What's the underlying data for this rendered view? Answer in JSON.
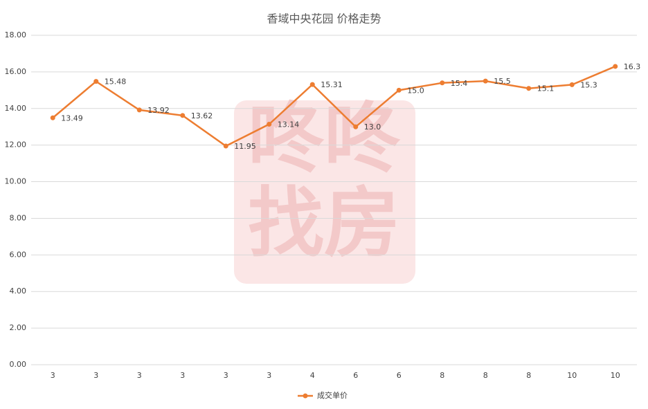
{
  "chart_data": {
    "type": "line",
    "title": "香域中央花园  价格走势",
    "watermark": "咚咚找房",
    "categories": [
      "3",
      "3",
      "3",
      "3",
      "3",
      "3",
      "4",
      "6",
      "6",
      "8",
      "8",
      "8",
      "10",
      "10"
    ],
    "series": [
      {
        "name": "成交单价",
        "color": "#ed7d31",
        "values": [
          13.49,
          15.48,
          13.92,
          13.62,
          11.95,
          13.14,
          15.31,
          13.0,
          15.0,
          15.4,
          15.5,
          15.1,
          15.3,
          16.3
        ],
        "value_labels": [
          "13.49",
          "15.48",
          "13.92",
          "13.62",
          "11.95",
          "13.14",
          "15.31",
          "13.0",
          "15.0",
          "15.4",
          "15.5",
          "15.1",
          "15.3",
          "16.3"
        ]
      }
    ],
    "ylim": [
      0,
      18
    ],
    "yticks": [
      {
        "value": 0,
        "label": "0.00"
      },
      {
        "value": 2,
        "label": "2.00"
      },
      {
        "value": 4,
        "label": "4.00"
      },
      {
        "value": 6,
        "label": "6.00"
      },
      {
        "value": 8,
        "label": "8.00"
      },
      {
        "value": 10,
        "label": "10.00"
      },
      {
        "value": 12,
        "label": "12.00"
      },
      {
        "value": 14,
        "label": "14.00"
      },
      {
        "value": 16,
        "label": "16.00"
      },
      {
        "value": 18,
        "label": "18.00"
      }
    ],
    "grid": true,
    "legend": "bottom"
  }
}
